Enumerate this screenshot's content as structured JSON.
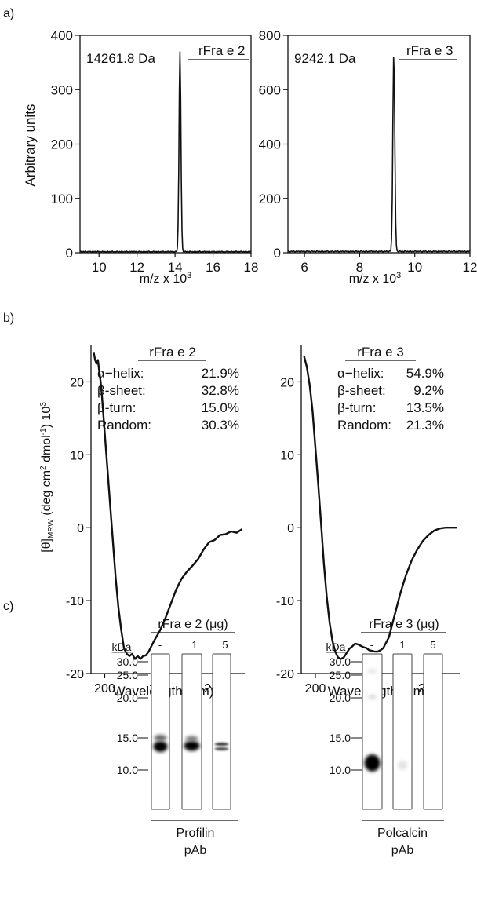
{
  "panel_labels": {
    "a": "a)",
    "b": "b)",
    "c": "c)"
  },
  "chart_data": [
    {
      "type": "line",
      "panel": "a",
      "ylabel": "Arbitrary units",
      "xlabel": "m/z x 10",
      "xlabel_sup": "3",
      "peak_label": "14261.8 Da",
      "legend": "rFra e 2",
      "xlim": [
        9,
        18
      ],
      "ylim": [
        0,
        400
      ],
      "xticks": [
        10,
        12,
        14,
        16,
        18
      ],
      "yticks": [
        0,
        100,
        200,
        300,
        400
      ],
      "peak_x": 14.26,
      "peak_y": 368,
      "peak_width": 0.07,
      "baseline": 2
    },
    {
      "type": "line",
      "panel": "a",
      "ylabel": "",
      "xlabel": "m/z x 10",
      "xlabel_sup": "3",
      "peak_label": "9242.1 Da",
      "legend": "rFra e 3",
      "xlim": [
        5.4,
        12
      ],
      "ylim": [
        0,
        800
      ],
      "xticks": [
        6,
        8,
        10,
        12
      ],
      "yticks": [
        0,
        200,
        400,
        600,
        800
      ],
      "peak_x": 9.24,
      "peak_y": 730,
      "peak_width": 0.05,
      "baseline": 5
    },
    {
      "type": "line",
      "panel": "b",
      "ylabel_main": "[θ]",
      "ylabel_sub": "MRW",
      "ylabel_rest": "(deg cm",
      "ylabel_sup1": "2",
      "ylabel_mid": " dmol",
      "ylabel_sup2": "-1",
      "ylabel_end": ") 10",
      "ylabel_sup3": "3",
      "xlabel": "Wavelength (nm)",
      "xlim": [
        195,
        251
      ],
      "ylim": [
        -20,
        25
      ],
      "xticks": [
        200,
        220,
        240
      ],
      "yticks": [
        -20,
        -10,
        0,
        10,
        20
      ],
      "table_title": "rFra e 2",
      "table": [
        {
          "label": "α−helix:",
          "value": "21.9%"
        },
        {
          "label": "β-sheet:",
          "value": "32.8%"
        },
        {
          "label": "β-turn:",
          "value": "15.0%"
        },
        {
          "label": "Random:",
          "value": "30.3%"
        }
      ],
      "x": [
        196,
        196.5,
        197,
        197.5,
        198,
        198.5,
        199,
        200,
        201,
        202,
        203,
        204,
        205,
        206,
        207,
        208,
        209,
        210,
        211,
        212,
        213,
        214,
        215,
        216,
        218,
        220,
        222,
        224,
        226,
        228,
        230,
        232,
        234,
        236,
        238,
        240,
        242,
        244,
        246,
        248,
        250
      ],
      "y": [
        24,
        23,
        22.5,
        23,
        21.5,
        20,
        18,
        13,
        8,
        3,
        -2,
        -7,
        -11,
        -14,
        -16.5,
        -17.3,
        -17.6,
        -17.3,
        -18.0,
        -17.6,
        -18.0,
        -17.6,
        -17.5,
        -17.0,
        -15.5,
        -14.2,
        -12.5,
        -10.5,
        -8.5,
        -7.0,
        -6.0,
        -5.2,
        -4.3,
        -3.0,
        -2.0,
        -1.7,
        -1.0,
        -0.9,
        -0.5,
        -0.7,
        -0.2
      ]
    },
    {
      "type": "line",
      "panel": "b",
      "xlabel": "Wavelength (nm)",
      "xlim": [
        195,
        251
      ],
      "ylim": [
        -20,
        25
      ],
      "xticks": [
        200,
        220,
        240
      ],
      "yticks": [
        -20,
        -10,
        0,
        10,
        20
      ],
      "table_title": "rFra e 3",
      "table": [
        {
          "label": "α−helix:",
          "value": "54.9%"
        },
        {
          "label": "β-sheet:",
          "value": "9.2%"
        },
        {
          "label": "β-turn:",
          "value": "13.5%"
        },
        {
          "label": "Random:",
          "value": "21.3%"
        }
      ],
      "x": [
        196,
        197,
        198,
        199,
        200,
        201,
        202,
        203,
        204,
        205,
        206,
        207,
        208,
        209,
        210,
        211,
        212,
        213,
        214,
        215,
        216,
        217,
        218,
        219,
        220,
        221,
        222,
        223,
        224,
        226,
        228,
        230,
        232,
        234,
        236,
        238,
        240,
        242,
        244,
        246,
        248,
        250
      ],
      "y": [
        23.5,
        22,
        19.5,
        16,
        11,
        6,
        0.5,
        -5,
        -9.5,
        -13,
        -15.5,
        -17,
        -17.8,
        -18.0,
        -17.8,
        -17.2,
        -16.6,
        -16.3,
        -15.9,
        -16.0,
        -16.2,
        -16.4,
        -16.5,
        -16.8,
        -16.9,
        -17.0,
        -17.0,
        -16.8,
        -16.5,
        -15.0,
        -12.0,
        -9.0,
        -6.5,
        -4.5,
        -3.0,
        -1.8,
        -1.0,
        -0.4,
        -0.1,
        0.0,
        0.0,
        0.0
      ]
    }
  ],
  "blots": [
    {
      "title": "rFra e 2 (μg)",
      "lanes": [
        "-",
        "1",
        "5"
      ],
      "kda_label": "kDa",
      "markers": [
        "30.0",
        "25.0",
        "20.0",
        "15.0",
        "10.0"
      ],
      "footer": "Profilin",
      "footer2": "pAb"
    },
    {
      "title": "rFra e 3 (μg)",
      "lanes": [
        "-",
        "1",
        "5"
      ],
      "kda_label": "kDa",
      "markers": [
        "30.0",
        "25.0",
        "20.0",
        "15.0",
        "10.0"
      ],
      "footer": "Polcalcin",
      "footer2": "pAb"
    }
  ]
}
